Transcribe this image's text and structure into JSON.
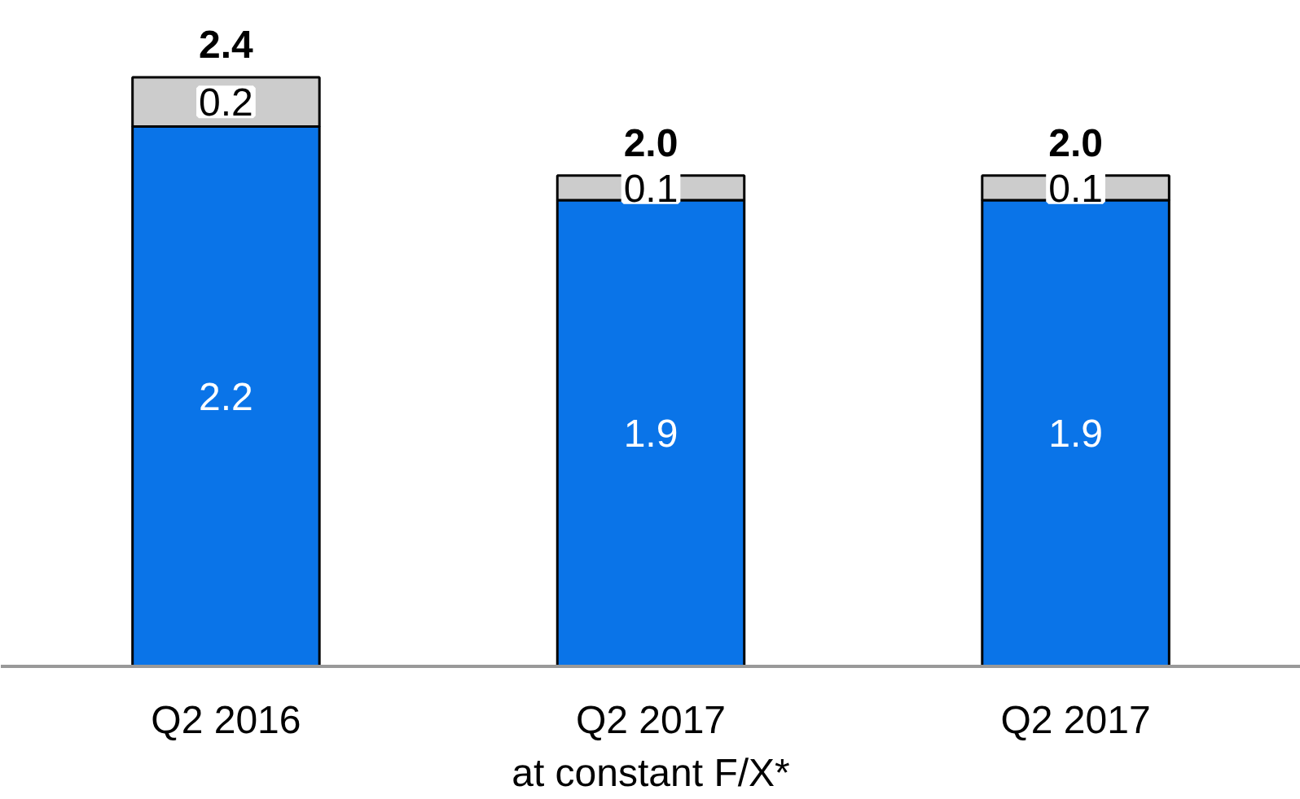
{
  "chart_data": {
    "type": "bar",
    "stacked": true,
    "categories": [
      "Q2 2016",
      "Q2 2017\nat constant F/X*",
      "Q2 2017"
    ],
    "series": [
      {
        "color": "#0a74e8",
        "values": [
          2.2,
          1.9,
          1.9
        ]
      },
      {
        "color": "#cccccc",
        "values": [
          0.2,
          0.1,
          0.1
        ]
      }
    ],
    "data_labels": true,
    "totals": [
      "2.4",
      "2.0",
      "2.0"
    ],
    "grid": false
  }
}
